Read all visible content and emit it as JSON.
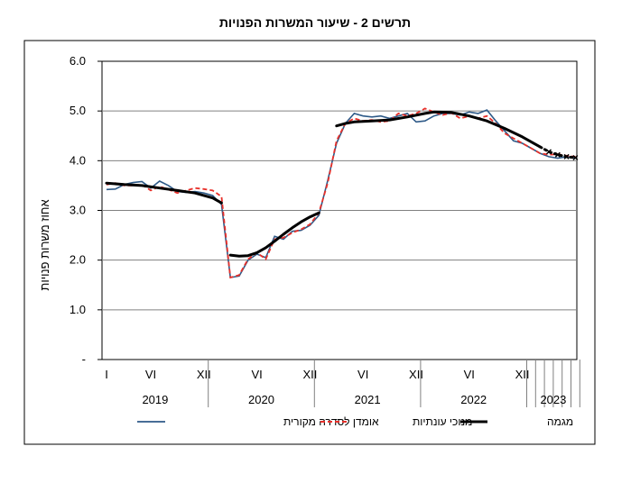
{
  "chart_data": {
    "type": "line",
    "title": "תרשים 2 - שיעור המשרות הפנויות",
    "xlabel": "",
    "ylabel": "אחוז משרות פנויות",
    "ylim": [
      0,
      6
    ],
    "y_ticks": [
      "-",
      "1.0",
      "2.0",
      "3.0",
      "4.0",
      "5.0",
      "6.0"
    ],
    "x_month_labels": [
      "I",
      "VI",
      "XII",
      "VI",
      "XII",
      "VI",
      "XII",
      "VI",
      "XII"
    ],
    "x_year_labels": [
      "2019",
      "2020",
      "2021",
      "2022",
      "2023"
    ],
    "grid": true,
    "legend": "bottom",
    "series": [
      {
        "name": "אומדן לסדרה מקורית",
        "color": "#2E5A88",
        "style": "solid",
        "x": [
          1,
          2,
          3,
          4,
          5,
          6,
          7,
          8,
          9,
          10,
          11,
          12,
          13,
          14,
          15,
          16,
          17,
          18,
          19,
          20,
          21,
          22,
          23,
          24,
          25,
          26,
          27,
          28,
          29,
          30,
          31,
          32,
          33,
          34,
          35,
          36,
          37,
          38,
          39,
          40,
          41,
          42,
          43,
          44,
          45,
          46,
          47,
          48,
          49,
          50,
          51,
          52,
          53,
          54
        ],
        "values": [
          3.42,
          3.43,
          3.52,
          3.56,
          3.58,
          3.45,
          3.59,
          3.5,
          3.38,
          3.36,
          3.38,
          3.35,
          3.3,
          3.12,
          1.65,
          1.68,
          2.0,
          2.12,
          2.05,
          2.48,
          2.42,
          2.58,
          2.6,
          2.7,
          2.9,
          3.6,
          4.35,
          4.75,
          4.95,
          4.9,
          4.88,
          4.9,
          4.85,
          4.9,
          4.95,
          4.78,
          4.8,
          4.9,
          4.95,
          4.95,
          4.92,
          4.98,
          4.95,
          5.02,
          4.8,
          4.6,
          4.4,
          4.35,
          4.25,
          4.15,
          4.08,
          4.05,
          4.08,
          4.05
        ]
      },
      {
        "name": "מנוכי עונתיות",
        "color": "#E8302A",
        "style": "dashed",
        "x": [
          1,
          2,
          3,
          4,
          5,
          6,
          7,
          8,
          9,
          10,
          11,
          12,
          13,
          14,
          15,
          16,
          17,
          18,
          19,
          20,
          21,
          22,
          23,
          24,
          25,
          26,
          27,
          28,
          29,
          30,
          31,
          32,
          33,
          34,
          35,
          36,
          37,
          38,
          39,
          40,
          41,
          42,
          43,
          44,
          45,
          46,
          47,
          48,
          49,
          50,
          51,
          52,
          53,
          54
        ],
        "values": [
          3.52,
          3.55,
          3.5,
          3.5,
          3.52,
          3.4,
          3.48,
          3.42,
          3.35,
          3.4,
          3.45,
          3.43,
          3.4,
          3.28,
          1.65,
          1.7,
          2.02,
          2.15,
          2.02,
          2.42,
          2.45,
          2.55,
          2.62,
          2.72,
          2.95,
          3.55,
          4.4,
          4.75,
          4.85,
          4.8,
          4.82,
          4.78,
          4.8,
          4.95,
          4.9,
          4.95,
          5.05,
          4.98,
          4.92,
          4.96,
          4.85,
          4.9,
          4.85,
          4.9,
          4.75,
          4.55,
          4.45,
          4.35,
          4.25,
          4.15,
          4.12,
          4.13,
          4.1,
          4.08
        ]
      },
      {
        "name": "מגמה",
        "color": "#000000",
        "style": "solid-thick",
        "segments": [
          {
            "x": [
              1,
              3,
              5,
              7,
              9,
              11,
              13,
              14
            ],
            "values": [
              3.55,
              3.52,
              3.5,
              3.45,
              3.4,
              3.35,
              3.25,
              3.15
            ]
          },
          {
            "x": [
              15,
              16,
              17,
              18,
              19,
              20,
              21,
              22,
              23,
              24,
              25
            ],
            "values": [
              2.1,
              2.08,
              2.09,
              2.15,
              2.25,
              2.38,
              2.52,
              2.65,
              2.77,
              2.87,
              2.95
            ]
          },
          {
            "x": [
              27,
              28,
              29,
              30,
              31,
              33,
              35,
              37,
              38,
              40,
              42,
              44,
              46,
              48,
              50
            ],
            "values": [
              4.7,
              4.75,
              4.78,
              4.79,
              4.8,
              4.82,
              4.88,
              4.95,
              4.98,
              4.97,
              4.9,
              4.8,
              4.65,
              4.48,
              4.28
            ]
          },
          {
            "x": [
              50,
              51,
              52,
              53,
              54
            ],
            "values": [
              4.28,
              4.18,
              4.12,
              4.08,
              4.06
            ],
            "style": "dotted"
          }
        ]
      }
    ]
  }
}
